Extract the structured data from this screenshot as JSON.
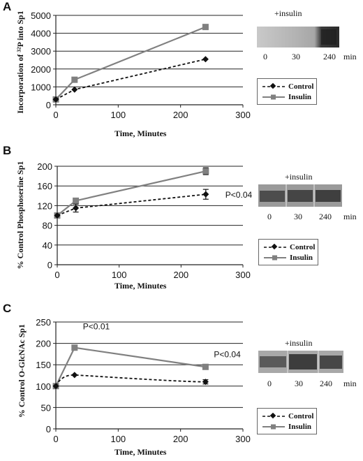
{
  "chart_data": [
    {
      "type": "line",
      "panel": "A",
      "xlabel": "Time, Minutes",
      "ylabel": "Incorporation of ³²P into Sp1",
      "xlim": [
        0,
        300
      ],
      "ylim": [
        0,
        5000
      ],
      "xticks": [
        0,
        100,
        200,
        300
      ],
      "yticks": [
        0,
        1000,
        2000,
        3000,
        4000,
        5000
      ],
      "grid": true,
      "legend_position": "right",
      "series": [
        {
          "name": "Control",
          "x": [
            0,
            30,
            240
          ],
          "y": [
            300,
            850,
            2550
          ],
          "style": "dashed",
          "marker": "diamond",
          "color": "#111111"
        },
        {
          "name": "Insulin",
          "x": [
            0,
            30,
            240
          ],
          "y": [
            300,
            1400,
            4350
          ],
          "style": "solid",
          "marker": "square",
          "color": "#808080"
        }
      ],
      "blot": {
        "title": "+insulin",
        "lanes": [
          "0",
          "30",
          "240"
        ],
        "unit": "min"
      }
    },
    {
      "type": "line",
      "panel": "B",
      "xlabel": "Time, Minutes",
      "ylabel": "% Control Phosphoserine Sp1",
      "xlim": [
        0,
        300
      ],
      "ylim": [
        0,
        200
      ],
      "xticks": [
        0,
        100,
        200,
        300
      ],
      "yticks": [
        0,
        40,
        80,
        120,
        160,
        200
      ],
      "grid": true,
      "legend_position": "right",
      "series": [
        {
          "name": "Control",
          "x": [
            0,
            30,
            240
          ],
          "y": [
            100,
            115,
            143
          ],
          "err": [
            0,
            8,
            10
          ],
          "style": "dashed",
          "marker": "diamond",
          "color": "#111111"
        },
        {
          "name": "Insulin",
          "x": [
            0,
            30,
            240
          ],
          "y": [
            100,
            130,
            190
          ],
          "err": [
            0,
            0,
            7
          ],
          "style": "solid",
          "marker": "square",
          "color": "#808080"
        }
      ],
      "annotations": [
        {
          "text": "P<0.04",
          "x": 240,
          "y": 143
        }
      ],
      "blot": {
        "title": "+insulin",
        "lanes": [
          "0",
          "30",
          "240"
        ],
        "unit": "min"
      }
    },
    {
      "type": "line",
      "panel": "C",
      "xlabel": "Time, Minutes",
      "ylabel": "% Control O-GlcNAc Sp1",
      "xlim": [
        0,
        300
      ],
      "ylim": [
        0,
        250
      ],
      "xticks": [
        0,
        100,
        200,
        300
      ],
      "yticks": [
        0,
        50,
        100,
        150,
        200,
        250
      ],
      "grid": true,
      "legend_position": "right",
      "series": [
        {
          "name": "Control",
          "x": [
            0,
            30,
            240
          ],
          "y": [
            100,
            126,
            110
          ],
          "err": [
            0,
            0,
            5
          ],
          "style": "dashed",
          "marker": "diamond",
          "color": "#111111"
        },
        {
          "name": "Insulin",
          "x": [
            0,
            30,
            240
          ],
          "y": [
            100,
            190,
            145
          ],
          "err": [
            0,
            0,
            3
          ],
          "style": "solid",
          "marker": "square",
          "color": "#808080"
        }
      ],
      "annotations": [
        {
          "text": "P<0.01",
          "x": 30,
          "y": 190
        },
        {
          "text": "P<0.04",
          "x": 240,
          "y": 145
        }
      ],
      "blot": {
        "title": "+insulin",
        "lanes": [
          "0",
          "30",
          "240"
        ],
        "unit": "min"
      }
    }
  ]
}
